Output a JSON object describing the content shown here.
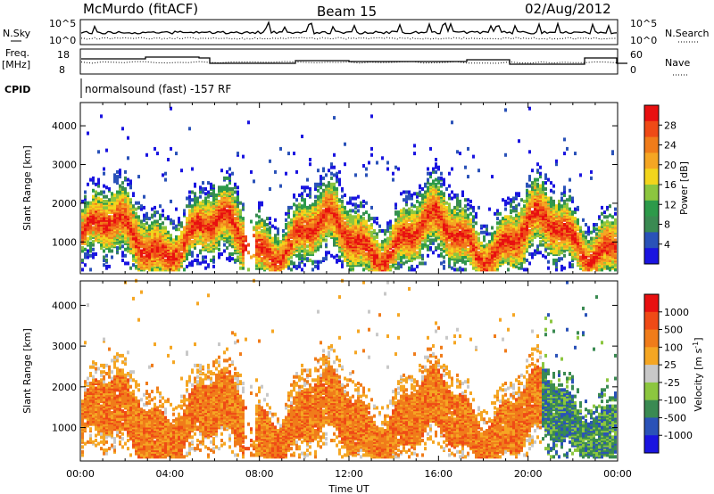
{
  "header": {
    "station": "McMurdo (fitACF)",
    "beam": "Beam 15",
    "date": "02/Aug/2012"
  },
  "noise_panel": {
    "left_label": "N.Sky",
    "left_tick_top": "10^5",
    "left_tick_bottom": "10^0",
    "right_label": "N.Search",
    "right_tick_top": "10^5",
    "right_tick_bottom": "10^0"
  },
  "freq_panel": {
    "left_label_line1": "Freq.",
    "left_label_line2": "[MHz]",
    "left_tick_top": "18",
    "left_tick_bottom": "8",
    "right_label": "Nave",
    "right_tick_top": "60",
    "right_tick_bottom": "0"
  },
  "cpid": {
    "label": "CPID",
    "text": "normalsound (fast) -157 RF"
  },
  "colors": {
    "power_scale": [
      "#1a14e0",
      "#2a52b8",
      "#3a8a52",
      "#2d9a4a",
      "#8cc63f",
      "#f2d51c",
      "#f5a623",
      "#f07c1a",
      "#ef4a16",
      "#e81010"
    ],
    "velocity_scale": [
      "#e81010",
      "#ef4a16",
      "#f07c1a",
      "#f5a623",
      "#c8c8c8",
      "#8cc63f",
      "#3a8a52",
      "#2a52b8",
      "#1a14e0"
    ]
  },
  "chart_data": [
    {
      "type": "heatmap",
      "name": "power",
      "xlabel": "",
      "ylabel": "Slant Range [km]",
      "xlim": [
        0,
        24
      ],
      "ylim": [
        180,
        4600
      ],
      "y_ticks": [
        "1000",
        "2000",
        "3000",
        "4000"
      ],
      "colorbar_label": "Power [dB]",
      "colorbar_ticks": [
        "4",
        "8",
        "12",
        "16",
        "20",
        "24",
        "28"
      ]
    },
    {
      "type": "heatmap",
      "name": "velocity",
      "xlabel": "Time UT",
      "ylabel": "Slant Range [km]",
      "xlim": [
        0,
        24
      ],
      "ylim": [
        180,
        4600
      ],
      "x_ticks": [
        "00:00",
        "04:00",
        "08:00",
        "12:00",
        "16:00",
        "20:00",
        "00:00"
      ],
      "y_ticks": [
        "1000",
        "2000",
        "3000",
        "4000"
      ],
      "colorbar_label": "Velocity [m s^-1]",
      "colorbar_ticks": [
        "1000",
        "500",
        "100",
        "25",
        "-25",
        "-100",
        "-500",
        "-1000"
      ]
    }
  ]
}
